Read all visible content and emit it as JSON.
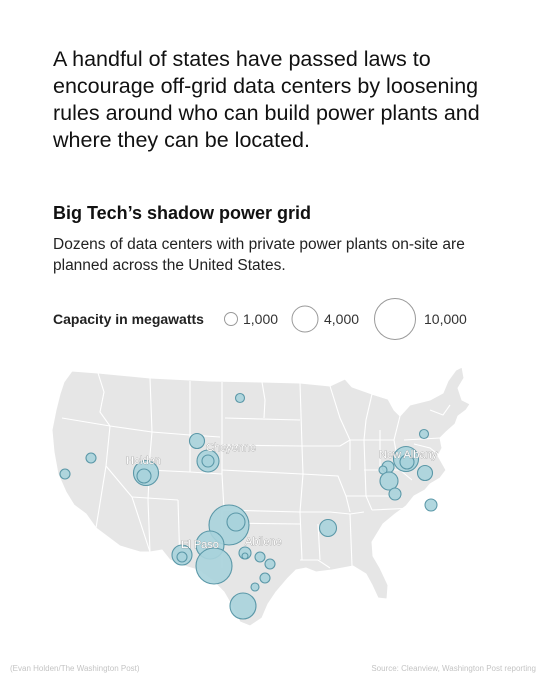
{
  "lede": "A handful of states have passed laws to encourage off-grid data centers by loosening rules around who can build power plants and where they can be located.",
  "title": "Big Tech’s shadow power grid",
  "subtitle": "Dozens of data centers with private power plants on-site are planned across the United States.",
  "legend": {
    "title": "Capacity in megawatts",
    "items": [
      {
        "label": "1,000",
        "mw": 1000
      },
      {
        "label": "4,000",
        "mw": 4000
      },
      {
        "label": "10,000",
        "mw": 10000
      }
    ]
  },
  "cities": [
    {
      "name": "Holden"
    },
    {
      "name": "Cheyenne"
    },
    {
      "name": "New Albany"
    },
    {
      "name": "El Paso"
    },
    {
      "name": "Abilene"
    }
  ],
  "colors": {
    "bubble_fill": "#a8d3db",
    "bubble_stroke": "#5b98a8",
    "land": "#e6e6e6",
    "borders": "#ffffff"
  },
  "credit_left": "(Evan Holden/The Washington Post)",
  "credit_right": "Source: Cleanview, Washington Post reporting"
}
